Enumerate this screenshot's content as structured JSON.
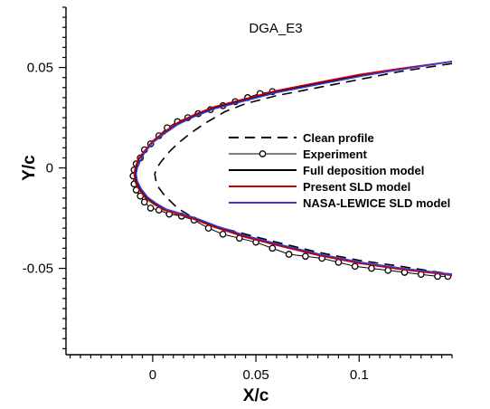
{
  "chart_data": {
    "type": "line",
    "title": "DGA_E3",
    "xlabel": "X/c",
    "ylabel": "Y/c",
    "xlim": [
      -0.042,
      0.145
    ],
    "ylim": [
      -0.093,
      0.08
    ],
    "x_ticks": [
      0,
      0.05,
      0.1
    ],
    "x_tick_labels": [
      "0",
      "0.05",
      "0.1"
    ],
    "y_ticks": [
      -0.05,
      0,
      0.05
    ],
    "y_tick_labels": [
      "-0.05",
      "0",
      "0.05"
    ],
    "grid": false,
    "legend_position": "right",
    "series": [
      {
        "name": "Clean profile",
        "color": "#000000",
        "style": "dashed",
        "x": [
          0.145,
          0.12,
          0.1,
          0.08,
          0.06,
          0.045,
          0.035,
          0.025,
          0.018,
          0.012,
          0.008,
          0.004,
          0.002,
          0.001,
          0.0015,
          0.003,
          0.006,
          0.012,
          0.02,
          0.03,
          0.045,
          0.06,
          0.08,
          0.1,
          0.12,
          0.145
        ],
        "y": [
          0.052,
          0.048,
          0.044,
          0.04,
          0.036,
          0.032,
          0.028,
          0.022,
          0.017,
          0.012,
          0.008,
          0.003,
          0.0,
          -0.003,
          -0.006,
          -0.01,
          -0.014,
          -0.02,
          -0.025,
          -0.029,
          -0.033,
          -0.037,
          -0.042,
          -0.046,
          -0.049,
          -0.053
        ]
      },
      {
        "name": "Experiment",
        "color": "#000000",
        "style": "line-circles",
        "x": [
          0.058,
          0.052,
          0.046,
          0.04,
          0.034,
          0.028,
          0.022,
          0.017,
          0.012,
          0.007,
          0.003,
          -0.001,
          -0.004,
          -0.006,
          -0.008,
          -0.009,
          -0.0095,
          -0.009,
          -0.008,
          -0.006,
          -0.004,
          -0.001,
          0.003,
          0.008,
          0.014,
          0.02,
          0.027,
          0.034,
          0.042,
          0.05,
          0.058,
          0.066,
          0.074,
          0.082,
          0.09,
          0.098,
          0.106,
          0.114,
          0.122,
          0.13,
          0.138,
          0.143
        ],
        "y": [
          0.038,
          0.037,
          0.035,
          0.033,
          0.031,
          0.029,
          0.027,
          0.025,
          0.023,
          0.02,
          0.016,
          0.012,
          0.009,
          0.005,
          0.002,
          -0.001,
          -0.004,
          -0.008,
          -0.011,
          -0.014,
          -0.017,
          -0.02,
          -0.021,
          -0.023,
          -0.024,
          -0.026,
          -0.03,
          -0.033,
          -0.035,
          -0.037,
          -0.04,
          -0.043,
          -0.044,
          -0.045,
          -0.047,
          -0.049,
          -0.05,
          -0.051,
          -0.052,
          -0.053,
          -0.054,
          -0.054
        ]
      },
      {
        "name": "Full deposition model",
        "color": "#000000",
        "style": "solid",
        "x": [
          0.145,
          0.12,
          0.1,
          0.08,
          0.06,
          0.045,
          0.03,
          0.02,
          0.012,
          0.005,
          0.0,
          -0.004,
          -0.007,
          -0.008,
          -0.0085,
          -0.008,
          -0.006,
          -0.003,
          0.001,
          0.006,
          0.012,
          0.02,
          0.03,
          0.045,
          0.06,
          0.08,
          0.1,
          0.12,
          0.145
        ],
        "y": [
          0.053,
          0.049,
          0.046,
          0.042,
          0.038,
          0.034,
          0.03,
          0.026,
          0.022,
          0.017,
          0.013,
          0.008,
          0.004,
          0.0,
          -0.003,
          -0.007,
          -0.011,
          -0.015,
          -0.018,
          -0.021,
          -0.023,
          -0.025,
          -0.029,
          -0.034,
          -0.038,
          -0.043,
          -0.047,
          -0.05,
          -0.053
        ]
      },
      {
        "name": "Present SLD model",
        "color": "#cc0000",
        "style": "solid",
        "x": [
          0.145,
          0.12,
          0.1,
          0.08,
          0.06,
          0.045,
          0.03,
          0.02,
          0.012,
          0.005,
          0.0,
          -0.004,
          -0.007,
          -0.0085,
          -0.009,
          -0.0085,
          -0.0065,
          -0.0035,
          0.0005,
          0.0055,
          0.012,
          0.02,
          0.03,
          0.045,
          0.06,
          0.08,
          0.1,
          0.12,
          0.145
        ],
        "y": [
          0.053,
          0.0495,
          0.0465,
          0.0425,
          0.0385,
          0.0345,
          0.0305,
          0.0265,
          0.0225,
          0.0175,
          0.0135,
          0.0085,
          0.0045,
          0.0,
          -0.003,
          -0.007,
          -0.011,
          -0.015,
          -0.018,
          -0.021,
          -0.023,
          -0.0255,
          -0.0295,
          -0.0345,
          -0.0385,
          -0.0435,
          -0.0475,
          -0.0505,
          -0.0535
        ]
      },
      {
        "name": "NASA-LEWICE SLD model",
        "color": "#3a3ad6",
        "style": "solid",
        "x": [
          0.145,
          0.12,
          0.1,
          0.08,
          0.06,
          0.045,
          0.03,
          0.02,
          0.012,
          0.005,
          0.0,
          -0.004,
          -0.006,
          -0.0075,
          -0.008,
          -0.0075,
          -0.0055,
          -0.0025,
          0.0015,
          0.0065,
          0.013,
          0.021,
          0.031,
          0.046,
          0.061,
          0.081,
          0.101,
          0.121,
          0.145
        ],
        "y": [
          0.053,
          0.049,
          0.0455,
          0.0415,
          0.0375,
          0.0335,
          0.0295,
          0.0255,
          0.0215,
          0.0165,
          0.0125,
          0.0075,
          0.0035,
          0.0,
          -0.003,
          -0.0065,
          -0.0105,
          -0.0145,
          -0.0175,
          -0.0205,
          -0.0225,
          -0.025,
          -0.029,
          -0.034,
          -0.038,
          -0.043,
          -0.047,
          -0.05,
          -0.053
        ]
      }
    ]
  }
}
